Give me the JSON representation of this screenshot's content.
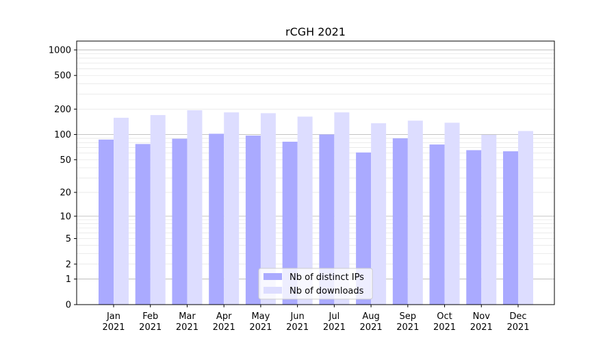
{
  "chart_data": {
    "type": "bar",
    "title": "rCGH 2021",
    "xlabel": "",
    "ylabel": "",
    "yscale": "log(1+y)",
    "ylim": [
      0,
      1272
    ],
    "yticks": [
      0,
      1,
      2,
      5,
      10,
      20,
      50,
      100,
      200,
      500,
      1000
    ],
    "grid": true,
    "legend_position": "lower-center",
    "categories": [
      "Jan\n2021",
      "Feb\n2021",
      "Mar\n2021",
      "Apr\n2021",
      "May\n2021",
      "Jun\n2021",
      "Jul\n2021",
      "Aug\n2021",
      "Sep\n2021",
      "Oct\n2021",
      "Nov\n2021",
      "Dec\n2021"
    ],
    "series": [
      {
        "name": "Nb of distinct IPs",
        "color": "#aaaaff",
        "values": [
          87,
          77,
          89,
          102,
          97,
          82,
          100,
          61,
          90,
          76,
          65,
          63
        ]
      },
      {
        "name": "Nb of downloads",
        "color": "#ddddff",
        "values": [
          158,
          170,
          194,
          183,
          179,
          163,
          183,
          136,
          146,
          138,
          99,
          110
        ]
      }
    ]
  }
}
